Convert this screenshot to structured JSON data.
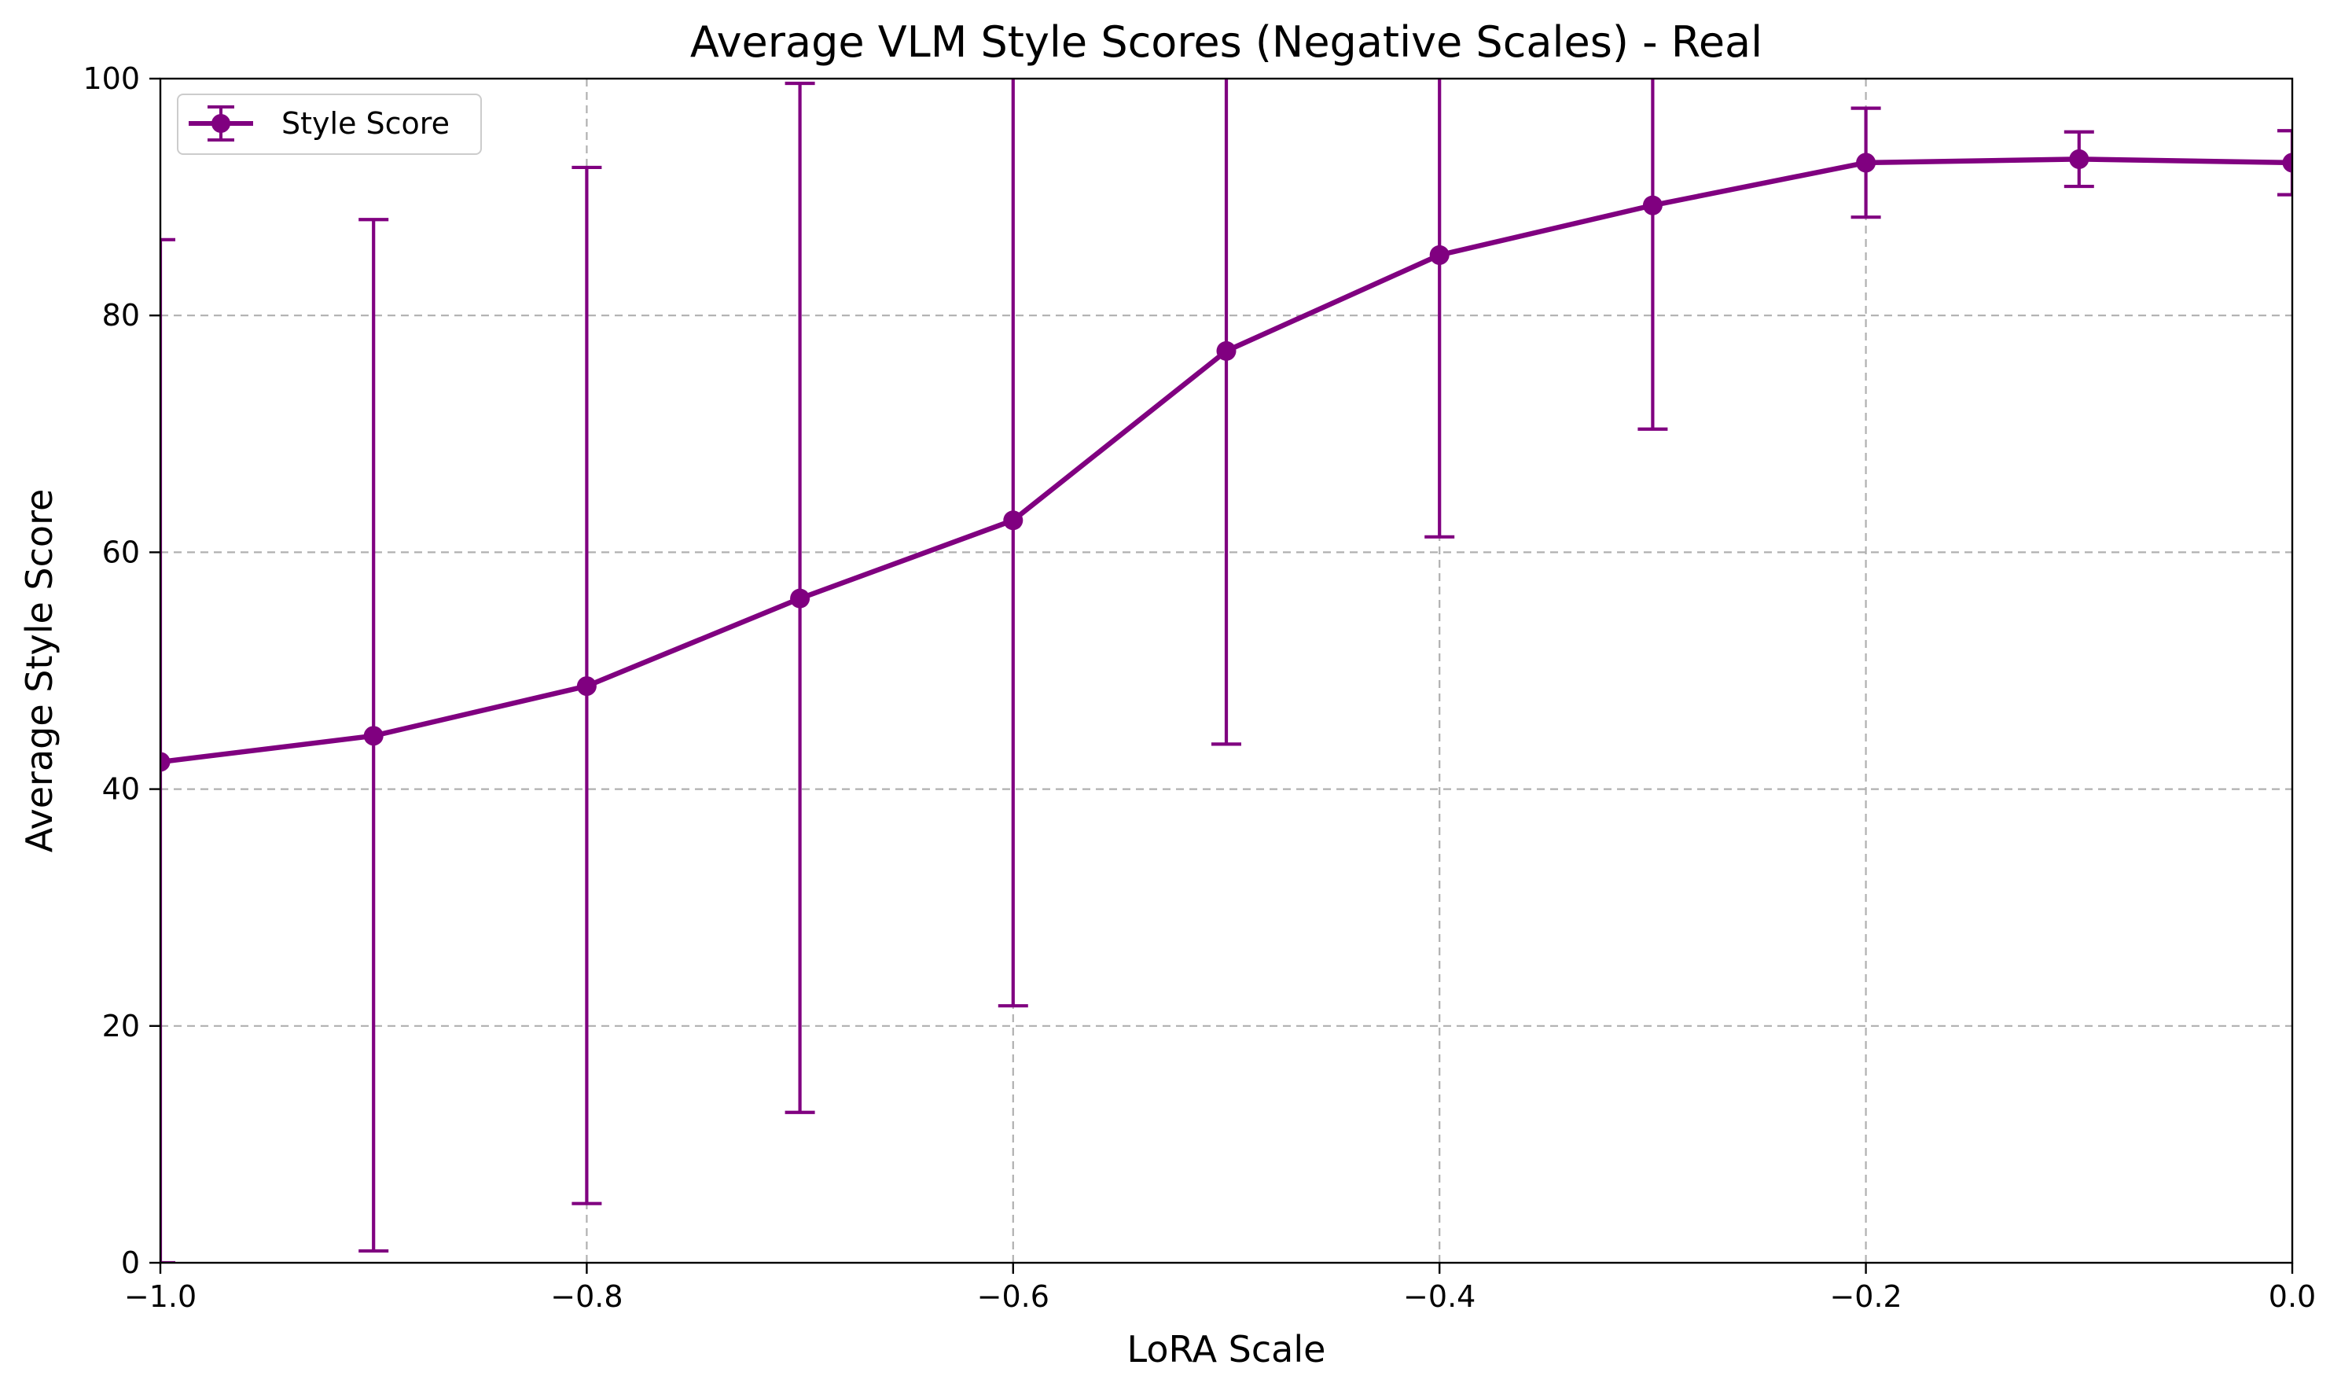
{
  "chart_data": {
    "type": "line",
    "title": "Average VLM Style Scores (Negative Scales) - Real",
    "xlabel": "LoRA Scale",
    "ylabel": "Average Style Score",
    "xlim": [
      -1.0,
      0.0
    ],
    "ylim": [
      0,
      100
    ],
    "x_ticks": [
      "−1.0",
      "−0.8",
      "−0.6",
      "−0.4",
      "−0.2",
      "0.0"
    ],
    "y_ticks": [
      "0",
      "20",
      "40",
      "60",
      "80",
      "100"
    ],
    "x_tick_values": [
      -1.0,
      -0.8,
      -0.6,
      -0.4,
      -0.2,
      0.0
    ],
    "y_tick_values": [
      0,
      20,
      40,
      60,
      80,
      100
    ],
    "grid": true,
    "legend_position": "upper-left",
    "series": [
      {
        "name": "Style Score",
        "color": "#800080",
        "marker": "circle",
        "x": [
          -1.0,
          -0.9,
          -0.8,
          -0.7,
          -0.6,
          -0.5,
          -0.4,
          -0.3,
          -0.2,
          -0.1,
          0.0
        ],
        "y": [
          42.3,
          44.5,
          48.7,
          56.1,
          62.7,
          77.0,
          85.1,
          89.3,
          92.9,
          93.2,
          92.9
        ],
        "error_low": [
          0,
          1.0,
          5.0,
          12.7,
          21.7,
          43.8,
          61.3,
          70.4,
          88.3,
          90.9,
          90.2
        ],
        "error_high": [
          86.4,
          88.1,
          92.5,
          99.6,
          103.7,
          110.2,
          108.9,
          108.2,
          97.5,
          95.5,
          95.6
        ]
      }
    ]
  }
}
